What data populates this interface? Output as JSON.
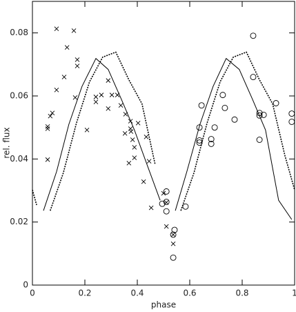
{
  "chart_data": {
    "type": "scatter",
    "x_label": "phase",
    "y_label": "rel. flux",
    "xlim": [
      0,
      1
    ],
    "ylim": [
      0,
      0.09
    ],
    "xticks": [
      0,
      0.2,
      0.4,
      0.6,
      0.8,
      1
    ],
    "yticks": [
      0,
      0.02,
      0.04,
      0.06,
      0.08
    ],
    "series": [
      {
        "style": "cross",
        "color": "#000000",
        "x": [
          0.092,
          0.158,
          0.132,
          0.171,
          0.171,
          0.121,
          0.092,
          0.163,
          0.076,
          0.068,
          0.058,
          0.058,
          0.058,
          0.208,
          0.242,
          0.242,
          0.263,
          0.289,
          0.303,
          0.289,
          0.324,
          0.337,
          0.355,
          0.353,
          0.374,
          0.374,
          0.376,
          0.382,
          0.389,
          0.368,
          0.389,
          0.403,
          0.434,
          0.424,
          0.445,
          0.453,
          0.5,
          0.511,
          0.511,
          0.537,
          0.537
        ],
        "values": [
          0.0813,
          0.0807,
          0.0754,
          0.0715,
          0.0695,
          0.066,
          0.0619,
          0.0595,
          0.0546,
          0.0536,
          0.0503,
          0.0496,
          0.0398,
          0.0492,
          0.0597,
          0.0581,
          0.0603,
          0.0649,
          0.0603,
          0.056,
          0.0603,
          0.057,
          0.0542,
          0.0481,
          0.052,
          0.0496,
          0.0487,
          0.0461,
          0.0437,
          0.0387,
          0.0404,
          0.0514,
          0.047,
          0.0328,
          0.0393,
          0.0245,
          0.0291,
          0.0262,
          0.0186,
          0.0131,
          0.016
        ]
      },
      {
        "style": "circle",
        "color": "#000000",
        "x": [
          0.842,
          0.842,
          0.645,
          0.726,
          0.734,
          0.637,
          0.695,
          0.637,
          0.637,
          0.682,
          0.682,
          0.771,
          0.866,
          0.866,
          0.882,
          0.866,
          0.929,
          0.989,
          0.989,
          0.511,
          0.511,
          0.495,
          0.511,
          0.542,
          0.537,
          0.537,
          0.584
        ],
        "values": [
          0.0791,
          0.066,
          0.057,
          0.0603,
          0.0562,
          0.05,
          0.05,
          0.0459,
          0.0452,
          0.0463,
          0.0448,
          0.0525,
          0.0546,
          0.0538,
          0.054,
          0.0461,
          0.0577,
          0.0544,
          0.0518,
          0.0297,
          0.0264,
          0.0258,
          0.0234,
          0.0175,
          0.016,
          0.0087,
          0.0249
        ]
      },
      {
        "style": "solid",
        "color": "#000000",
        "x": [
          0.042,
          0.092,
          0.139,
          0.189,
          0.242,
          0.289,
          0.339,
          0.389,
          0.439,
          0.487,
          null,
          0.545,
          0.589,
          0.639,
          0.689,
          0.739,
          0.789,
          0.839,
          0.889,
          0.939,
          0.989
        ],
        "values": [
          0.0236,
          0.036,
          0.051,
          0.063,
          0.0719,
          0.0684,
          0.059,
          0.0492,
          0.0378,
          0.0269,
          null,
          0.0236,
          0.036,
          0.051,
          0.063,
          0.0719,
          0.0684,
          0.059,
          0.0492,
          0.0269,
          0.0208
        ]
      },
      {
        "style": "dotted",
        "color": "#000000",
        "x": [
          0,
          0.016,
          null,
          0.068,
          0.118,
          0.168,
          0.218,
          0.268,
          0.318,
          0.368,
          0.418,
          0.468,
          null,
          0.566,
          0.616,
          0.666,
          0.716,
          0.766,
          0.816,
          0.866,
          0.916,
          0.963,
          1
        ],
        "values": [
          0.0302,
          0.0254,
          null,
          0.0236,
          0.0356,
          0.0514,
          0.0645,
          0.0723,
          0.0739,
          0.0651,
          0.0575,
          0.0383,
          null,
          0.0236,
          0.0356,
          0.0514,
          0.0645,
          0.0723,
          0.0739,
          0.0651,
          0.0575,
          0.0411,
          0.0302
        ]
      }
    ]
  }
}
